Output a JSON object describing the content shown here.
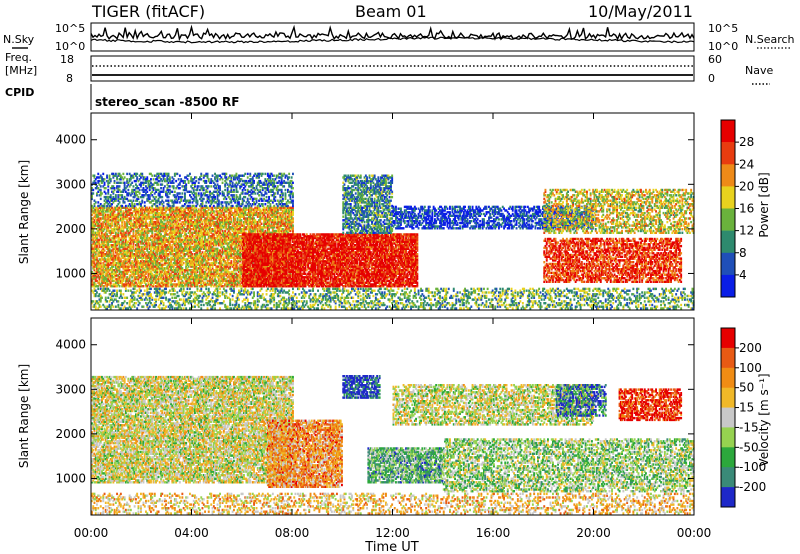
{
  "header": {
    "title": "TIGER (fitACF)",
    "beam": "Beam 01",
    "date": "10/May/2011"
  },
  "top_panels": {
    "nsky_label": "N.Sky",
    "nsky_ticks": [
      "10^5",
      "10^0"
    ],
    "nsearch_label": "N.Search",
    "nsearch_ticks": [
      "10^5",
      "10^0"
    ],
    "freq_label_line1": "Freq.",
    "freq_label_line2": "[MHz]",
    "freq_ticks": [
      "18",
      "8"
    ],
    "nave_label": "Nave",
    "nave_ticks": [
      "60",
      "0"
    ],
    "cpid_label": "CPID",
    "cpid_text": "stereo_scan -8500 RF"
  },
  "x_axis": {
    "label": "Time UT",
    "ticks": [
      "00:00",
      "04:00",
      "08:00",
      "12:00",
      "16:00",
      "20:00",
      "00:00"
    ]
  },
  "chart_data": [
    {
      "type": "heatmap",
      "name": "power-panel",
      "xlabel": "Time UT",
      "ylabel": "Slant Range [km]",
      "xlim": [
        0,
        24
      ],
      "ylim": [
        180,
        4600
      ],
      "y_ticks": [
        "1000",
        "2000",
        "3000",
        "4000"
      ],
      "y_tick_values": [
        1000,
        2000,
        3000,
        4000
      ],
      "colorbar": {
        "label": "Power [dB]",
        "tick_labels": [
          "4",
          "8",
          "12",
          "16",
          "20",
          "24",
          "28"
        ],
        "colors": [
          "#0a1ee6",
          "#1f4fb8",
          "#2e8a6e",
          "#6ab23c",
          "#e8d21e",
          "#ee8a18",
          "#e83c10",
          "#e60000"
        ]
      }
    },
    {
      "type": "heatmap",
      "name": "velocity-panel",
      "xlabel": "Time UT",
      "ylabel": "Slant Range [km]",
      "xlim": [
        0,
        24
      ],
      "ylim": [
        180,
        4600
      ],
      "y_ticks": [
        "1000",
        "2000",
        "3000",
        "4000"
      ],
      "y_tick_values": [
        1000,
        2000,
        3000,
        4000
      ],
      "colorbar": {
        "label": "Velocity [m s⁻¹]",
        "tick_labels": [
          "200",
          "100",
          "50",
          "15",
          "-15",
          "-50",
          "-100",
          "-200"
        ],
        "colors": [
          "#1e28c8",
          "#3a8a78",
          "#2ca83c",
          "#96d250",
          "#c8c8c8",
          "#f0b828",
          "#f08c14",
          "#e85a14",
          "#e60000"
        ]
      }
    }
  ]
}
